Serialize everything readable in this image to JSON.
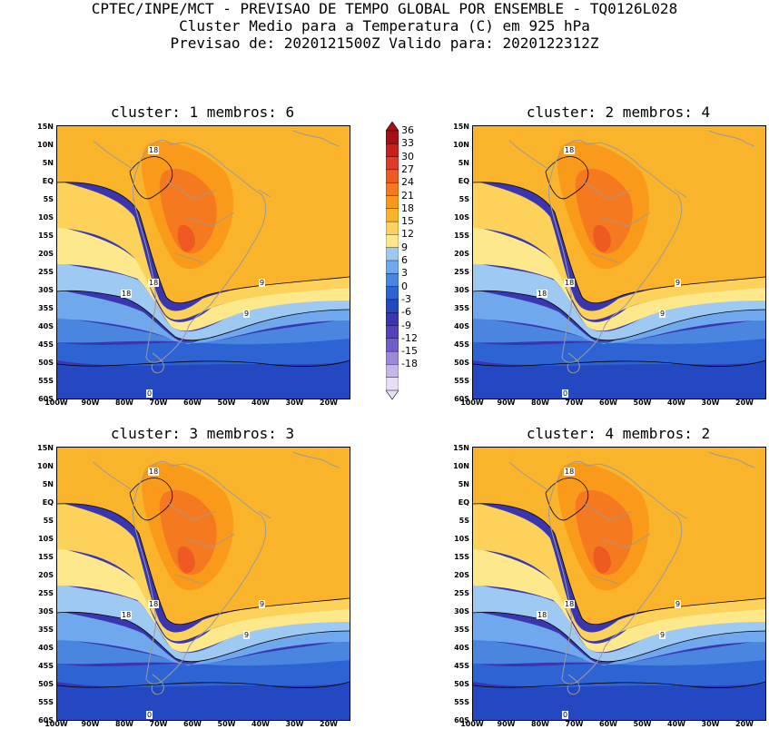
{
  "header": {
    "line1": "CPTEC/INPE/MCT - PREVISAO DE TEMPO GLOBAL POR ENSEMBLE - TQ0126L028",
    "line2": "Cluster Medio para a Temperatura (C) em 925 hPa",
    "line3": "Previsao de: 2020121500Z   Valido para: 2020122312Z"
  },
  "lat_labels": [
    "15N",
    "10N",
    "5N",
    "EQ",
    "5S",
    "10S",
    "15S",
    "20S",
    "25S",
    "30S",
    "35S",
    "40S",
    "45S",
    "50S",
    "55S",
    "60S"
  ],
  "lon_labels": [
    "100W",
    "90W",
    "80W",
    "70W",
    "60W",
    "50W",
    "40W",
    "30W",
    "20W"
  ],
  "colorbar": {
    "levels": [
      "36",
      "33",
      "30",
      "27",
      "24",
      "21",
      "18",
      "15",
      "12",
      "9",
      "6",
      "3",
      "0",
      "-3",
      "-6",
      "-9",
      "-12",
      "-15",
      "-18"
    ],
    "colors": [
      "#a50f15",
      "#c8201e",
      "#e03a28",
      "#ef5a22",
      "#f57a1f",
      "#f99a1b",
      "#fab42c",
      "#fcd25a",
      "#fde98c",
      "#9ec9f2",
      "#6fa8ec",
      "#4a86e0",
      "#2e63d4",
      "#2448c2",
      "#3a36b0",
      "#5442b8",
      "#6e5fc8",
      "#9c8ad8",
      "#c4b6e8",
      "#e6def5"
    ]
  },
  "panels": [
    {
      "title": "cluster: 1   membros: 6",
      "contour_labels": [
        "18",
        "18",
        "18",
        "9",
        "9",
        "0"
      ]
    },
    {
      "title": "cluster: 2   membros: 4",
      "contour_labels": [
        "18",
        "18",
        "18",
        "9",
        "9",
        "0"
      ]
    },
    {
      "title": "cluster: 3   membros: 3",
      "contour_labels": [
        "18",
        "18",
        "18",
        "9",
        "9",
        "0"
      ]
    },
    {
      "title": "cluster: 4   membros: 2",
      "contour_labels": [
        "18",
        "18",
        "18",
        "9",
        "9",
        "0"
      ]
    }
  ]
}
